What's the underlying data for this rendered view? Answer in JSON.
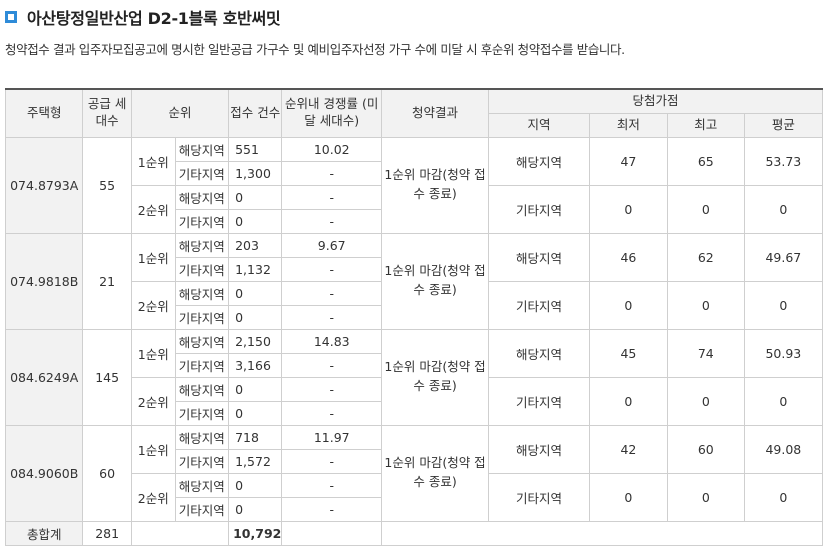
{
  "title": "아산탕정일반산업 D2-1블록 호반써밋",
  "description": "청약접수 결과 입주자모집공고에 명시한 일반공급 가구수 및 예비입주자선정 가구 수에 미달 시 후순위 청약접수를 받습니다.",
  "headers": {
    "type": "주택형",
    "supply": "공급 세대수",
    "rank": "순위",
    "applicants": "접수 건수",
    "competition": "순위내 경쟁률 (미달 세대수)",
    "result": "청약결과",
    "score": "당첨가점",
    "region": "지역",
    "min": "최저",
    "max": "최고",
    "avg": "평균"
  },
  "rows": [
    {
      "type": "074.8793A",
      "supply": "55",
      "result": "1순위 마감(청약 접수 종료)",
      "r1_label": "1순위",
      "r2_label": "2순위",
      "lines": [
        {
          "area": "해당지역",
          "count": "551",
          "ratio": "10.02"
        },
        {
          "area": "기타지역",
          "count": "1,300",
          "ratio": "-"
        },
        {
          "area": "해당지역",
          "count": "0",
          "ratio": "-"
        },
        {
          "area": "기타지역",
          "count": "0",
          "ratio": "-"
        }
      ],
      "scores": [
        {
          "region": "해당지역",
          "min": "47",
          "max": "65",
          "avg": "53.73"
        },
        {
          "region": "기타지역",
          "min": "0",
          "max": "0",
          "avg": "0"
        }
      ]
    },
    {
      "type": "074.9818B",
      "supply": "21",
      "result": "1순위 마감(청약 접수 종료)",
      "r1_label": "1순위",
      "r2_label": "2순위",
      "lines": [
        {
          "area": "해당지역",
          "count": "203",
          "ratio": "9.67"
        },
        {
          "area": "기타지역",
          "count": "1,132",
          "ratio": "-"
        },
        {
          "area": "해당지역",
          "count": "0",
          "ratio": "-"
        },
        {
          "area": "기타지역",
          "count": "0",
          "ratio": "-"
        }
      ],
      "scores": [
        {
          "region": "해당지역",
          "min": "46",
          "max": "62",
          "avg": "49.67"
        },
        {
          "region": "기타지역",
          "min": "0",
          "max": "0",
          "avg": "0"
        }
      ]
    },
    {
      "type": "084.6249A",
      "supply": "145",
      "result": "1순위 마감(청약 접수 종료)",
      "r1_label": "1순위",
      "r2_label": "2순위",
      "lines": [
        {
          "area": "해당지역",
          "count": "2,150",
          "ratio": "14.83"
        },
        {
          "area": "기타지역",
          "count": "3,166",
          "ratio": "-"
        },
        {
          "area": "해당지역",
          "count": "0",
          "ratio": "-"
        },
        {
          "area": "기타지역",
          "count": "0",
          "ratio": "-"
        }
      ],
      "scores": [
        {
          "region": "해당지역",
          "min": "45",
          "max": "74",
          "avg": "50.93"
        },
        {
          "region": "기타지역",
          "min": "0",
          "max": "0",
          "avg": "0"
        }
      ]
    },
    {
      "type": "084.9060B",
      "supply": "60",
      "result": "1순위 마감(청약 접수 종료)",
      "r1_label": "1순위",
      "r2_label": "2순위",
      "lines": [
        {
          "area": "해당지역",
          "count": "718",
          "ratio": "11.97"
        },
        {
          "area": "기타지역",
          "count": "1,572",
          "ratio": "-"
        },
        {
          "area": "해당지역",
          "count": "0",
          "ratio": "-"
        },
        {
          "area": "기타지역",
          "count": "0",
          "ratio": "-"
        }
      ],
      "scores": [
        {
          "region": "해당지역",
          "min": "42",
          "max": "60",
          "avg": "49.08"
        },
        {
          "region": "기타지역",
          "min": "0",
          "max": "0",
          "avg": "0"
        }
      ]
    }
  ],
  "total": {
    "label": "총합계",
    "supply": "281",
    "count": "10,792"
  }
}
